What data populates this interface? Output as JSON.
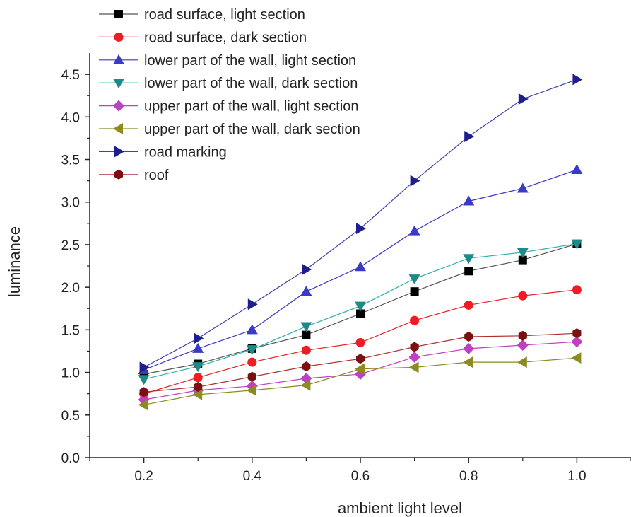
{
  "chart_data": {
    "type": "line",
    "title": "",
    "xlabel": "ambient light level",
    "ylabel": "luminance",
    "xlim": [
      0.1,
      1.1
    ],
    "ylim": [
      0,
      4.75
    ],
    "xticks": [
      0.2,
      0.4,
      0.6,
      0.8,
      1.0
    ],
    "xtick_labels": [
      "0.2",
      "0.4",
      "0.6",
      "0.8",
      "1.0"
    ],
    "yticks": [
      0,
      0.5,
      1.0,
      1.5,
      2.0,
      2.5,
      3.0,
      3.5,
      4.0,
      4.5
    ],
    "ytick_labels": [
      "0.0",
      "0.5",
      "1.0",
      "1.5",
      "2.0",
      "2.5",
      "3.0",
      "3.5",
      "4.0",
      "4.5"
    ],
    "grid": false,
    "legend_position": "top-left",
    "x": [
      0.2,
      0.3,
      0.4,
      0.5,
      0.6,
      0.7,
      0.8,
      0.9,
      1.0
    ],
    "series": [
      {
        "name": "road surface, light section",
        "color": "#000000",
        "line_color": "#555555",
        "marker": "square",
        "values": [
          0.98,
          1.1,
          1.28,
          1.44,
          1.69,
          1.95,
          2.19,
          2.32,
          2.51
        ]
      },
      {
        "name": "road surface, dark section",
        "color": "#ee1c25",
        "line_color": "#ee1c25",
        "marker": "circle",
        "values": [
          0.75,
          0.94,
          1.12,
          1.26,
          1.35,
          1.61,
          1.79,
          1.9,
          1.97
        ]
      },
      {
        "name": "lower part of the wall, light section",
        "color": "#3a3ac8",
        "line_color": "#3a3ac8",
        "marker": "triangle-up",
        "values": [
          1.03,
          1.28,
          1.5,
          1.95,
          2.24,
          2.66,
          3.01,
          3.16,
          3.38
        ]
      },
      {
        "name": "lower part of the wall, dark section",
        "color": "#1d8a8a",
        "line_color": "#2ab0b0",
        "marker": "triangle-down",
        "values": [
          0.92,
          1.07,
          1.27,
          1.54,
          1.78,
          2.1,
          2.34,
          2.41,
          2.51
        ]
      },
      {
        "name": "upper part of the wall, light section",
        "color": "#c040c0",
        "line_color": "#c040c0",
        "marker": "diamond",
        "values": [
          0.68,
          0.79,
          0.84,
          0.93,
          0.98,
          1.18,
          1.28,
          1.32,
          1.36
        ]
      },
      {
        "name": "upper part of the wall, dark section",
        "color": "#8c8c1e",
        "line_color": "#8c8c1e",
        "marker": "triangle-left",
        "values": [
          0.62,
          0.74,
          0.79,
          0.85,
          1.04,
          1.06,
          1.12,
          1.12,
          1.17
        ]
      },
      {
        "name": "road marking",
        "color": "#1e1e8c",
        "line_color": "#4040b0",
        "marker": "triangle-right",
        "values": [
          1.06,
          1.4,
          1.8,
          2.21,
          2.69,
          3.25,
          3.77,
          4.21,
          4.44
        ]
      },
      {
        "name": "roof",
        "color": "#7a1010",
        "line_color": "#b03030",
        "marker": "hexagon",
        "values": [
          0.77,
          0.83,
          0.95,
          1.07,
          1.16,
          1.3,
          1.42,
          1.43,
          1.46
        ]
      }
    ]
  }
}
